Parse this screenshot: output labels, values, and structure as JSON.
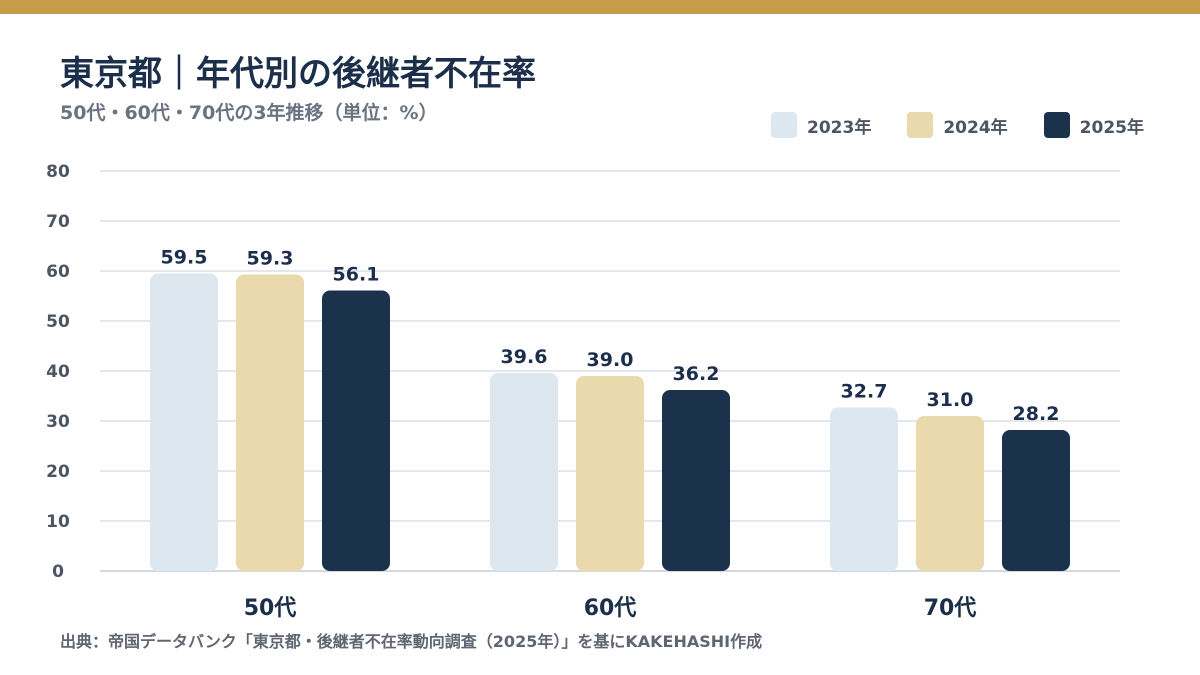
{
  "header": {
    "title": "東京都｜年代別の後継者不在率",
    "subtitle": "50代・60代・70代の3年推移（単位：%）"
  },
  "colors": {
    "accent_bar": "#c59d4a",
    "grid": "#d4d9e0",
    "axis_text": "#3b4452",
    "label_text": "#1b2f4a"
  },
  "source": "出典：帝国データバンク「東京都・後継者不在率動向調査（2025年）」を基にKAKEHASHI作成",
  "chart_data": {
    "type": "bar",
    "categories": [
      "50代",
      "60代",
      "70代"
    ],
    "series": [
      {
        "name": "2023年",
        "color": "#dce7ef",
        "values": [
          59.5,
          39.6,
          32.7
        ],
        "labels": [
          "59.5",
          "39.6",
          "32.7"
        ]
      },
      {
        "name": "2024年",
        "color": "#e9d9ad",
        "values": [
          59.3,
          39.0,
          31.0
        ],
        "labels": [
          "59.3",
          "39.0",
          "31.0"
        ]
      },
      {
        "name": "2025年",
        "color": "#1b324d",
        "values": [
          56.1,
          36.2,
          28.2
        ],
        "labels": [
          "56.1",
          "36.2",
          "28.2"
        ]
      }
    ],
    "ylim": [
      0,
      80
    ],
    "yticks": [
      0,
      10,
      20,
      30,
      40,
      50,
      60,
      70,
      80
    ],
    "grid": true,
    "legend_position": "top-right"
  }
}
